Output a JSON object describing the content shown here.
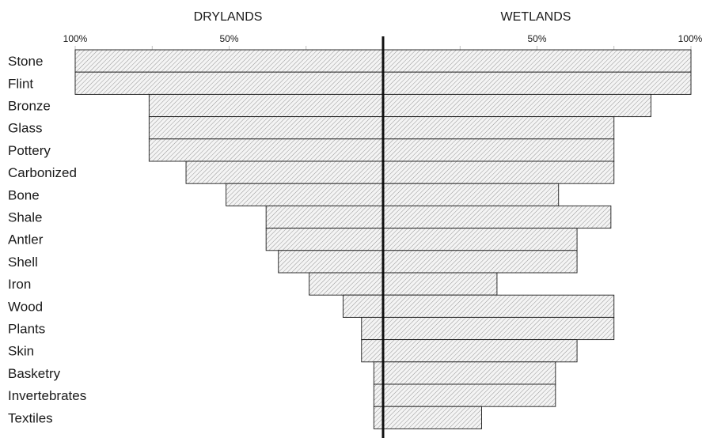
{
  "chart_data": {
    "type": "bar",
    "orientation": "horizontal-diverging",
    "title": "",
    "left_heading": "DRYLANDS",
    "right_heading": "WETLANDS",
    "left_ticks": [
      "100%",
      "50%"
    ],
    "right_ticks": [
      "50%",
      "100%"
    ],
    "xlim": [
      0,
      100
    ],
    "categories": [
      "Stone",
      "Flint",
      "Bronze",
      "Glass",
      "Pottery",
      "Carbonized",
      "Bone",
      "Shale",
      "Antler",
      "Shell",
      "Iron",
      "Wood",
      "Plants",
      "Skin",
      "Basketry",
      "Invertebrates",
      "Textiles"
    ],
    "series": [
      {
        "name": "DRYLANDS",
        "values": [
          100,
          100,
          76,
          76,
          76,
          64,
          51,
          38,
          38,
          34,
          24,
          13,
          7,
          7,
          3,
          3,
          3
        ]
      },
      {
        "name": "WETLANDS",
        "values": [
          100,
          100,
          87,
          75,
          75,
          75,
          57,
          74,
          63,
          63,
          37,
          75,
          75,
          63,
          56,
          56,
          32
        ]
      }
    ],
    "grid": true,
    "bar_fill": "hatched",
    "colors": {
      "ink": "#1a1a1a",
      "hatch": "#8a8a8a",
      "grid": "#b0b0b0"
    }
  }
}
